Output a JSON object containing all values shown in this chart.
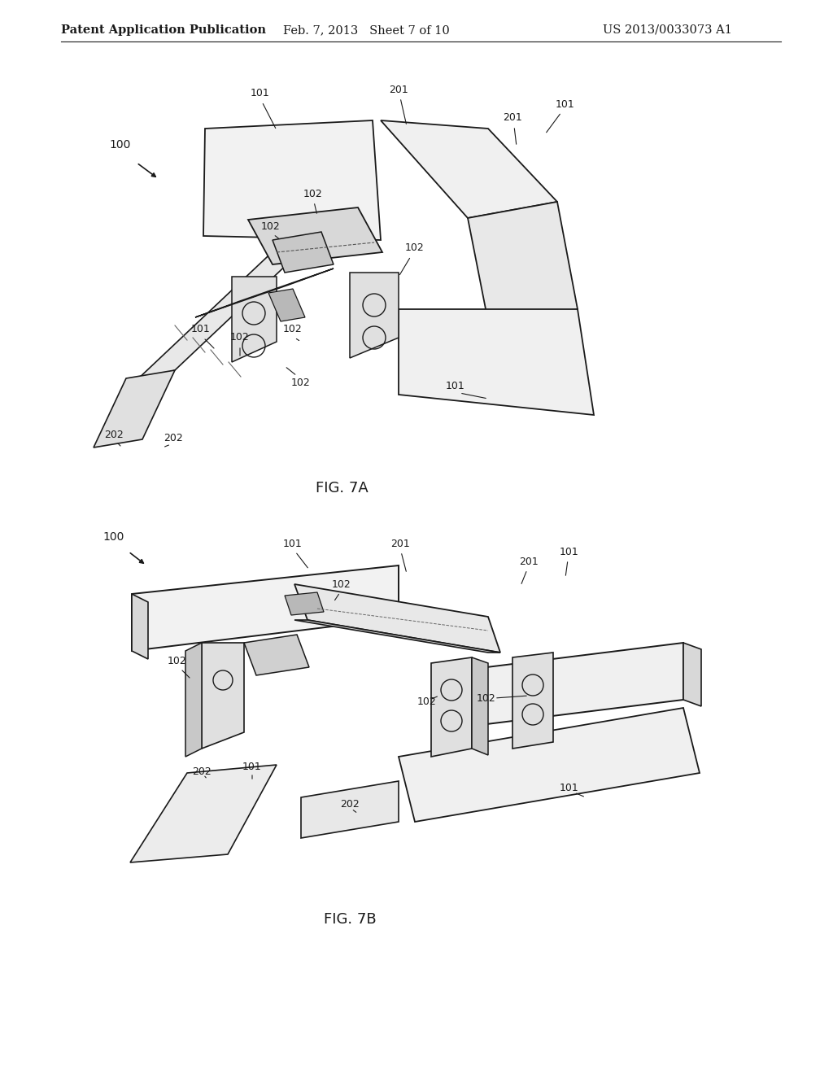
{
  "background_color": "#ffffff",
  "header_left": "Patent Application Publication",
  "header_center": "Feb. 7, 2013   Sheet 7 of 10",
  "header_right": "US 2013/0033073 A1",
  "text_color": "#1a1a1a",
  "line_color": "#1a1a1a",
  "fig7a_label": "FIG. 7A",
  "fig7b_label": "FIG. 7B"
}
